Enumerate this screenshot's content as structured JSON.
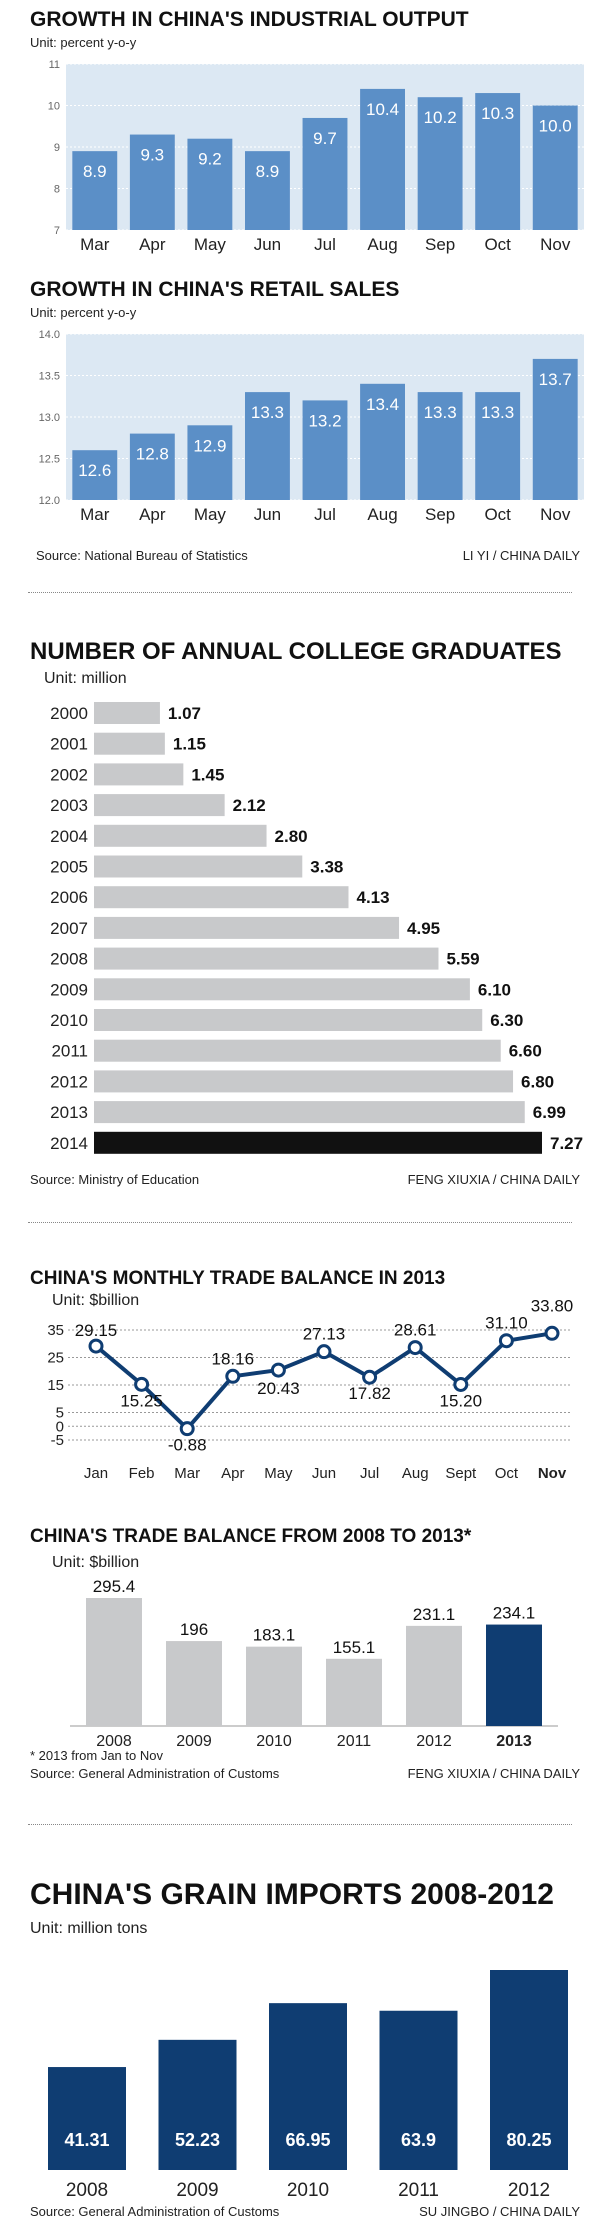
{
  "colors": {
    "blue_bar": "#5b8fc7",
    "blue_bg": "#dce8f3",
    "grey_bar": "#c8c9cb",
    "navy": "#0f3d72",
    "black_bar": "#111111"
  },
  "industrial": {
    "title": "GROWTH IN CHINA'S INDUSTRIAL OUTPUT",
    "unit": "Unit: percent y-o-y"
  },
  "retail": {
    "title": "GROWTH IN CHINA'S RETAIL SALES",
    "unit": "Unit: percent y-o-y"
  },
  "section1_credits": {
    "source": "Source: National Bureau of Statistics",
    "byline": "LI YI / CHINA DAILY"
  },
  "graduates": {
    "title": "NUMBER OF ANNUAL COLLEGE GRADUATES",
    "unit": "Unit: million",
    "source": "Source: Ministry of Education",
    "byline": "FENG XIUXIA / CHINA DAILY"
  },
  "monthly_trade": {
    "title": "CHINA'S MONTHLY TRADE BALANCE IN 2013",
    "unit": "Unit: $billion"
  },
  "annual_trade": {
    "title": "CHINA'S TRADE BALANCE FROM 2008 TO 2013*",
    "unit": "Unit: $billion",
    "footnote": "* 2013 from Jan to Nov",
    "source": "Source: General Administration of Customs",
    "byline": "FENG XIUXIA / CHINA DAILY"
  },
  "grain": {
    "title": "CHINA'S GRAIN IMPORTS 2008-2012",
    "unit": "Unit: million tons",
    "source": "Source: General Administration of Customs",
    "byline": "SU JINGBO / CHINA DAILY"
  },
  "chart_data": [
    {
      "type": "bar",
      "title": "GROWTH IN CHINA'S INDUSTRIAL OUTPUT",
      "ylabel": "Unit: percent y-o-y",
      "categories": [
        "Mar",
        "Apr",
        "May",
        "Jun",
        "Jul",
        "Aug",
        "Sep",
        "Oct",
        "Nov"
      ],
      "values": [
        8.9,
        9.3,
        9.2,
        8.9,
        9.7,
        10.4,
        10.2,
        10.3,
        10.0
      ],
      "value_labels": [
        "8.9",
        "9.3",
        "9.2",
        "8.9",
        "9.7",
        "10.4",
        "10.2",
        "10.3",
        "10.0"
      ],
      "ylim": [
        7,
        11
      ],
      "yticks": [
        "7",
        "8",
        "9",
        "10",
        "11"
      ],
      "grid": true
    },
    {
      "type": "bar",
      "title": "GROWTH IN CHINA'S RETAIL SALES",
      "ylabel": "Unit: percent y-o-y",
      "categories": [
        "Mar",
        "Apr",
        "May",
        "Jun",
        "Jul",
        "Aug",
        "Sep",
        "Oct",
        "Nov"
      ],
      "values": [
        12.6,
        12.8,
        12.9,
        13.3,
        13.2,
        13.4,
        13.3,
        13.3,
        13.7
      ],
      "value_labels": [
        "12.6",
        "12.8",
        "12.9",
        "13.3",
        "13.2",
        "13.4",
        "13.3",
        "13.3",
        "13.7"
      ],
      "ylim": [
        12.0,
        14.0
      ],
      "yticks": [
        "12.0",
        "12.5",
        "13.0",
        "13.5",
        "14.0"
      ],
      "grid": true
    },
    {
      "type": "bar",
      "orientation": "horizontal",
      "title": "NUMBER OF ANNUAL COLLEGE GRADUATES",
      "ylabel": "Unit: million",
      "categories": [
        "2000",
        "2001",
        "2002",
        "2003",
        "2004",
        "2005",
        "2006",
        "2007",
        "2008",
        "2009",
        "2010",
        "2011",
        "2012",
        "2013",
        "2014"
      ],
      "values": [
        1.07,
        1.15,
        1.45,
        2.12,
        2.8,
        3.38,
        4.13,
        4.95,
        5.59,
        6.1,
        6.3,
        6.6,
        6.8,
        6.99,
        7.27
      ],
      "value_labels": [
        "1.07",
        "1.15",
        "1.45",
        "2.12",
        "2.80",
        "3.38",
        "4.13",
        "4.95",
        "5.59",
        "6.10",
        "6.30",
        "6.60",
        "6.80",
        "6.99",
        "7.27"
      ],
      "highlight": "2014"
    },
    {
      "type": "line",
      "title": "CHINA'S MONTHLY TRADE BALANCE IN 2013",
      "ylabel": "Unit: $billion",
      "categories": [
        "Jan",
        "Feb",
        "Mar",
        "Apr",
        "May",
        "Jun",
        "Jul",
        "Aug",
        "Sept",
        "Oct",
        "Nov"
      ],
      "values": [
        29.15,
        15.25,
        -0.88,
        18.16,
        20.43,
        27.13,
        17.82,
        28.61,
        15.2,
        31.1,
        33.8
      ],
      "value_labels": [
        "29.15",
        "15.25",
        "-0.88",
        "18.16",
        "20.43",
        "27.13",
        "17.82",
        "28.61",
        "15.20",
        "31.10",
        "33.80"
      ],
      "ylim": [
        -5,
        35
      ],
      "yticks": [
        "-5",
        "0",
        "5",
        "15",
        "25",
        "35"
      ],
      "grid": true
    },
    {
      "type": "bar",
      "title": "CHINA'S TRADE BALANCE FROM 2008 TO 2013*",
      "ylabel": "Unit: $billion",
      "categories": [
        "2008",
        "2009",
        "2010",
        "2011",
        "2012",
        "2013"
      ],
      "values": [
        295.4,
        196,
        183.1,
        155.1,
        231.1,
        234.1
      ],
      "value_labels": [
        "295.4",
        "196",
        "183.1",
        "155.1",
        "231.1",
        "234.1"
      ],
      "highlight": "2013"
    },
    {
      "type": "bar",
      "title": "CHINA'S GRAIN IMPORTS 2008-2012",
      "ylabel": "Unit: million tons",
      "categories": [
        "2008",
        "2009",
        "2010",
        "2011",
        "2012"
      ],
      "values": [
        41.31,
        52.23,
        66.95,
        63.9,
        80.25
      ],
      "value_labels": [
        "41.31",
        "52.23",
        "66.95",
        "63.9",
        "80.25"
      ]
    }
  ]
}
